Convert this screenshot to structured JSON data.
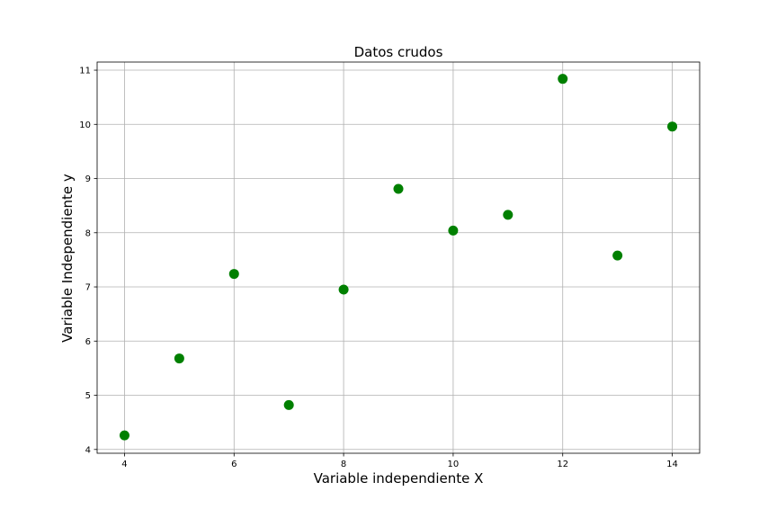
{
  "chart_data": {
    "type": "scatter",
    "title": "Datos crudos",
    "xlabel": "Variable independiente X",
    "ylabel": "Variable Independiente y",
    "xlim": [
      3.5,
      14.5
    ],
    "ylim": [
      3.93,
      11.15
    ],
    "xticks": [
      4,
      6,
      8,
      10,
      12,
      14
    ],
    "yticks": [
      4,
      5,
      6,
      7,
      8,
      9,
      10,
      11
    ],
    "grid": true,
    "marker_color": "#008000",
    "points": [
      {
        "x": 4,
        "y": 4.26
      },
      {
        "x": 5,
        "y": 5.68
      },
      {
        "x": 6,
        "y": 7.24
      },
      {
        "x": 7,
        "y": 4.82
      },
      {
        "x": 8,
        "y": 6.95
      },
      {
        "x": 9,
        "y": 8.81
      },
      {
        "x": 10,
        "y": 8.04
      },
      {
        "x": 11,
        "y": 8.33
      },
      {
        "x": 12,
        "y": 10.84
      },
      {
        "x": 13,
        "y": 7.58
      },
      {
        "x": 14,
        "y": 9.96
      }
    ]
  }
}
